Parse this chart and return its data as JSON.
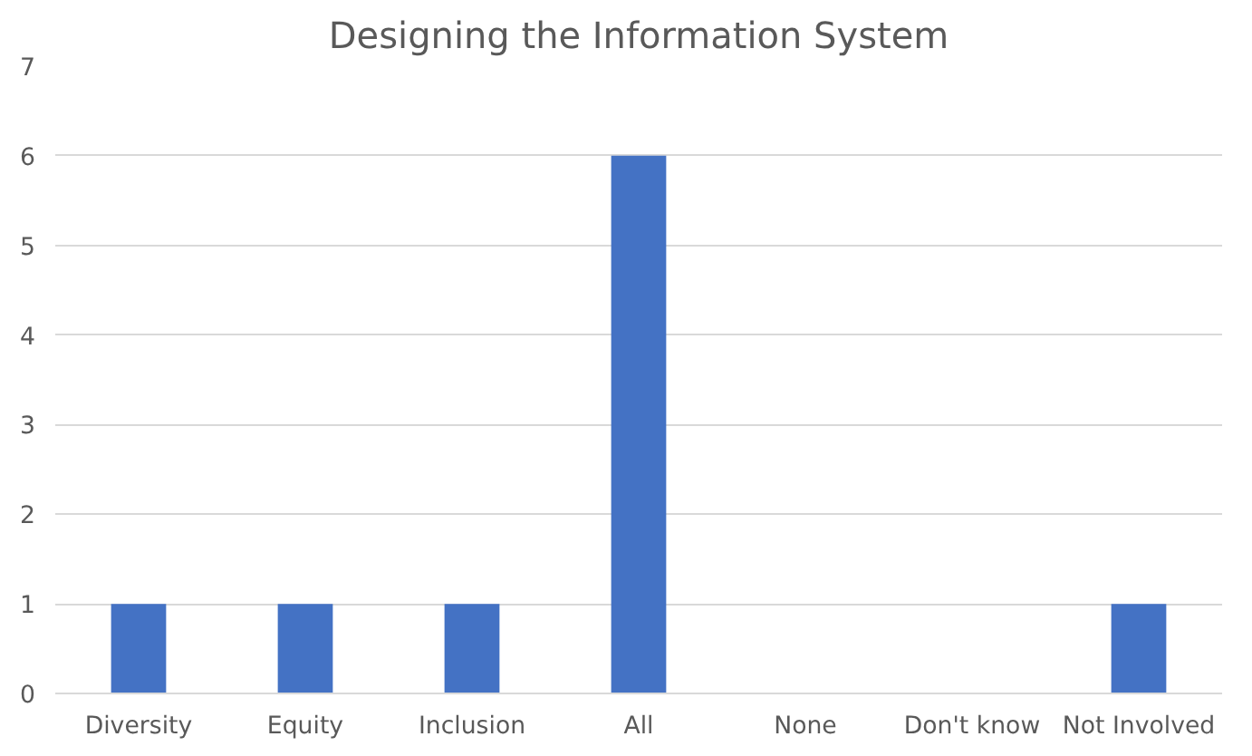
{
  "chart_data": {
    "type": "bar",
    "title": "Designing the Information System",
    "categories": [
      "Diversity",
      "Equity",
      "Inclusion",
      "All",
      "None",
      "Don't know",
      "Not Involved"
    ],
    "values": [
      1,
      1,
      1,
      6,
      0,
      0,
      1
    ],
    "color": "#4472c4",
    "ylim": [
      0,
      7
    ],
    "yticks": [
      0,
      1,
      2,
      3,
      4,
      5,
      6,
      7
    ],
    "grid": "y"
  }
}
